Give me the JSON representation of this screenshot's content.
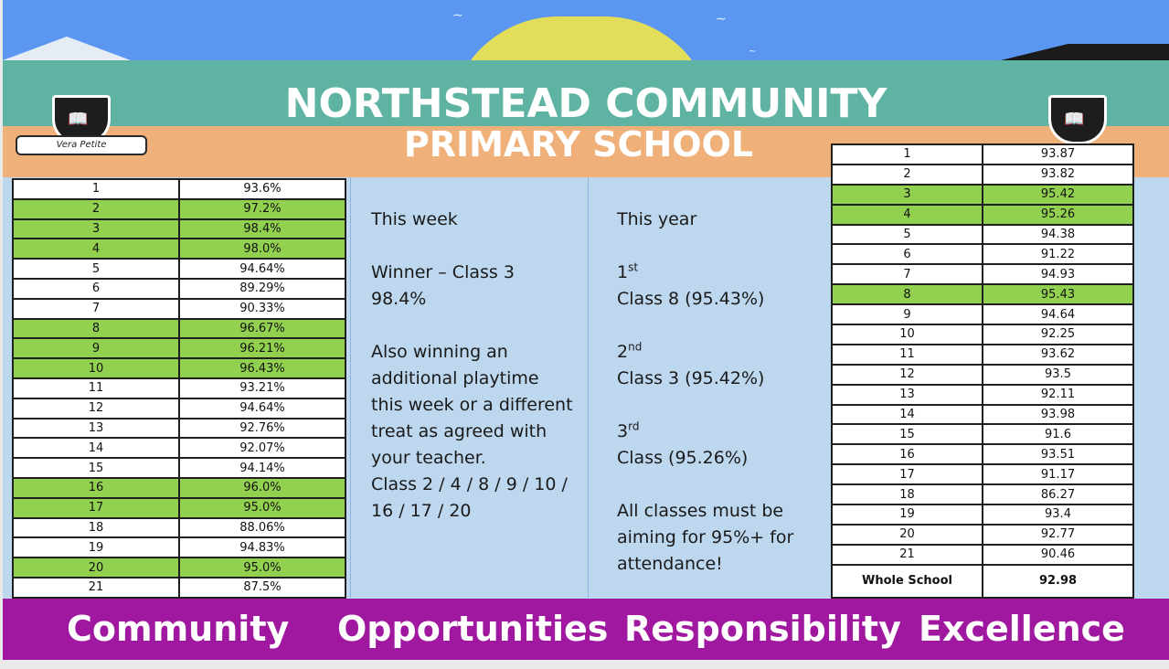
{
  "banner": {
    "title_line1": "NORTHSTEAD COMMUNITY",
    "title_line2": "PRIMARY SCHOOL",
    "motto": "Vera Petite",
    "crest_icon": "book-shield-icon",
    "colors": {
      "sky": "#5b97f0",
      "sea": "#5fb3a3",
      "sand": "#efb07a",
      "sun": "#e2de5a"
    }
  },
  "weekly_table": {
    "highlight_color": "#92d050",
    "rows": [
      {
        "cls": "1",
        "value": "93.6%",
        "highlight": false
      },
      {
        "cls": "2",
        "value": "97.2%",
        "highlight": true
      },
      {
        "cls": "3",
        "value": "98.4%",
        "highlight": true
      },
      {
        "cls": "4",
        "value": "98.0%",
        "highlight": true
      },
      {
        "cls": "5",
        "value": "94.64%",
        "highlight": false
      },
      {
        "cls": "6",
        "value": "89.29%",
        "highlight": false
      },
      {
        "cls": "7",
        "value": "90.33%",
        "highlight": false
      },
      {
        "cls": "8",
        "value": "96.67%",
        "highlight": true
      },
      {
        "cls": "9",
        "value": "96.21%",
        "highlight": true
      },
      {
        "cls": "10",
        "value": "96.43%",
        "highlight": true
      },
      {
        "cls": "11",
        "value": "93.21%",
        "highlight": false
      },
      {
        "cls": "12",
        "value": "94.64%",
        "highlight": false
      },
      {
        "cls": "13",
        "value": "92.76%",
        "highlight": false
      },
      {
        "cls": "14",
        "value": "92.07%",
        "highlight": false
      },
      {
        "cls": "15",
        "value": "94.14%",
        "highlight": false
      },
      {
        "cls": "16",
        "value": "96.0%",
        "highlight": true
      },
      {
        "cls": "17",
        "value": "95.0%",
        "highlight": true
      },
      {
        "cls": "18",
        "value": "88.06%",
        "highlight": false
      },
      {
        "cls": "19",
        "value": "94.83%",
        "highlight": false
      },
      {
        "cls": "20",
        "value": "95.0%",
        "highlight": true
      },
      {
        "cls": "21",
        "value": "87.5%",
        "highlight": false
      }
    ]
  },
  "this_week": {
    "heading": "This week",
    "winner_line": "Winner – Class 3",
    "winner_value": "98.4%",
    "extra_lines": [
      "Also winning an",
      "additional playtime",
      "this week or a different",
      "treat as agreed with",
      "your teacher."
    ],
    "class_lines": [
      "Class 2 / 4 / 8 / 9 / 10 /",
      "16 / 17 / 20"
    ]
  },
  "this_year": {
    "heading": "This year",
    "places": [
      {
        "num": "1",
        "suffix": "st",
        "text": "Class 8   (95.43%)"
      },
      {
        "num": "2",
        "suffix": "nd",
        "text": "Class 3  (95.42%)"
      },
      {
        "num": "3",
        "suffix": "rd",
        "text": "Class (95.26%)"
      }
    ],
    "note_lines": [
      "All classes must be",
      "aiming for 95%+ for",
      "attendance!"
    ]
  },
  "yearly_table": {
    "rows": [
      {
        "cls": "1",
        "value": "93.87",
        "highlight": false
      },
      {
        "cls": "2",
        "value": "93.82",
        "highlight": false
      },
      {
        "cls": "3",
        "value": "95.42",
        "highlight": true
      },
      {
        "cls": "4",
        "value": "95.26",
        "highlight": true
      },
      {
        "cls": "5",
        "value": "94.38",
        "highlight": false
      },
      {
        "cls": "6",
        "value": "91.22",
        "highlight": false
      },
      {
        "cls": "7",
        "value": "94.93",
        "highlight": false
      },
      {
        "cls": "8",
        "value": "95.43",
        "highlight": true
      },
      {
        "cls": "9",
        "value": "94.64",
        "highlight": false
      },
      {
        "cls": "10",
        "value": "92.25",
        "highlight": false
      },
      {
        "cls": "11",
        "value": "93.62",
        "highlight": false
      },
      {
        "cls": "12",
        "value": "93.5",
        "highlight": false
      },
      {
        "cls": "13",
        "value": "92.11",
        "highlight": false
      },
      {
        "cls": "14",
        "value": "93.98",
        "highlight": false
      },
      {
        "cls": "15",
        "value": "91.6",
        "highlight": false
      },
      {
        "cls": "16",
        "value": "93.51",
        "highlight": false
      },
      {
        "cls": "17",
        "value": "91.17",
        "highlight": false
      },
      {
        "cls": "18",
        "value": "86.27",
        "highlight": false
      },
      {
        "cls": "19",
        "value": "93.4",
        "highlight": false
      },
      {
        "cls": "20",
        "value": "92.77",
        "highlight": false
      },
      {
        "cls": "21",
        "value": "90.46",
        "highlight": false
      }
    ],
    "total_label": "Whole School",
    "total_value": "92.98"
  },
  "footer": {
    "color": "#a0189f",
    "values": [
      "Community",
      "Opportunities",
      "Responsibility",
      "Excellence"
    ]
  }
}
